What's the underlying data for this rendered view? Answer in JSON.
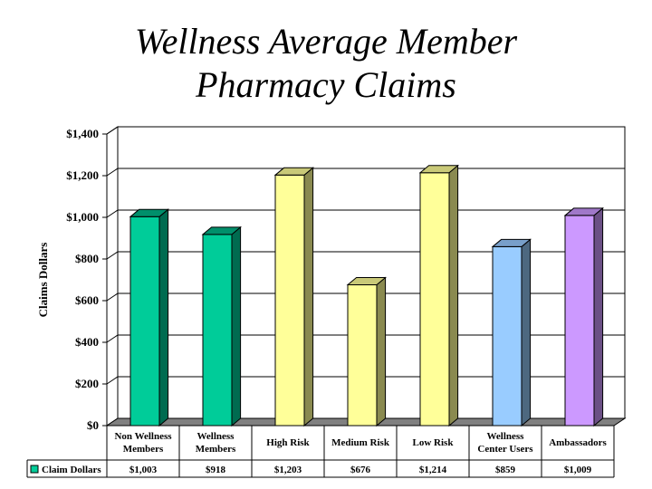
{
  "title": {
    "line1": "Wellness Average Member",
    "line2": "Pharmacy Claims"
  },
  "chart_data": {
    "type": "bar",
    "title": "Wellness Average Member Pharmacy Claims",
    "ylabel": "Claims Dollars",
    "xlabel": "",
    "ylim": [
      0,
      1400
    ],
    "yticks": [
      "$0",
      "$200",
      "$400",
      "$600",
      "$800",
      "$1,000",
      "$1,200",
      "$1,400"
    ],
    "categories": [
      [
        "Non Wellness",
        "Members"
      ],
      [
        "Wellness",
        "Members"
      ],
      [
        "High Risk"
      ],
      [
        "Medium Risk"
      ],
      [
        "Low Risk"
      ],
      [
        "Wellness",
        "Center Users"
      ],
      [
        "Ambassadors"
      ]
    ],
    "series": [
      {
        "name": "Claim Dollars",
        "values": [
          1003,
          918,
          1203,
          676,
          1214,
          859,
          1009
        ],
        "labels": [
          "$1,003",
          "$918",
          "$1,203",
          "$676",
          "$1,214",
          "$859",
          "$1,009"
        ]
      }
    ],
    "bar_colors": [
      {
        "front": "#00cc99",
        "side": "#006b50",
        "top": "#008f6b"
      },
      {
        "front": "#00cc99",
        "side": "#006b50",
        "top": "#008f6b"
      },
      {
        "front": "#ffff99",
        "side": "#8a8a50",
        "top": "#c9c978"
      },
      {
        "front": "#ffff99",
        "side": "#8a8a50",
        "top": "#c9c978"
      },
      {
        "front": "#ffff99",
        "side": "#8a8a50",
        "top": "#c9c978"
      },
      {
        "front": "#99ccff",
        "side": "#4d6880",
        "top": "#789fc9"
      },
      {
        "front": "#cc99ff",
        "side": "#6b5085",
        "top": "#a078c9"
      }
    ],
    "legend_color": "#00cc99",
    "grid": true,
    "legend_placement": "data-table-bottom"
  }
}
